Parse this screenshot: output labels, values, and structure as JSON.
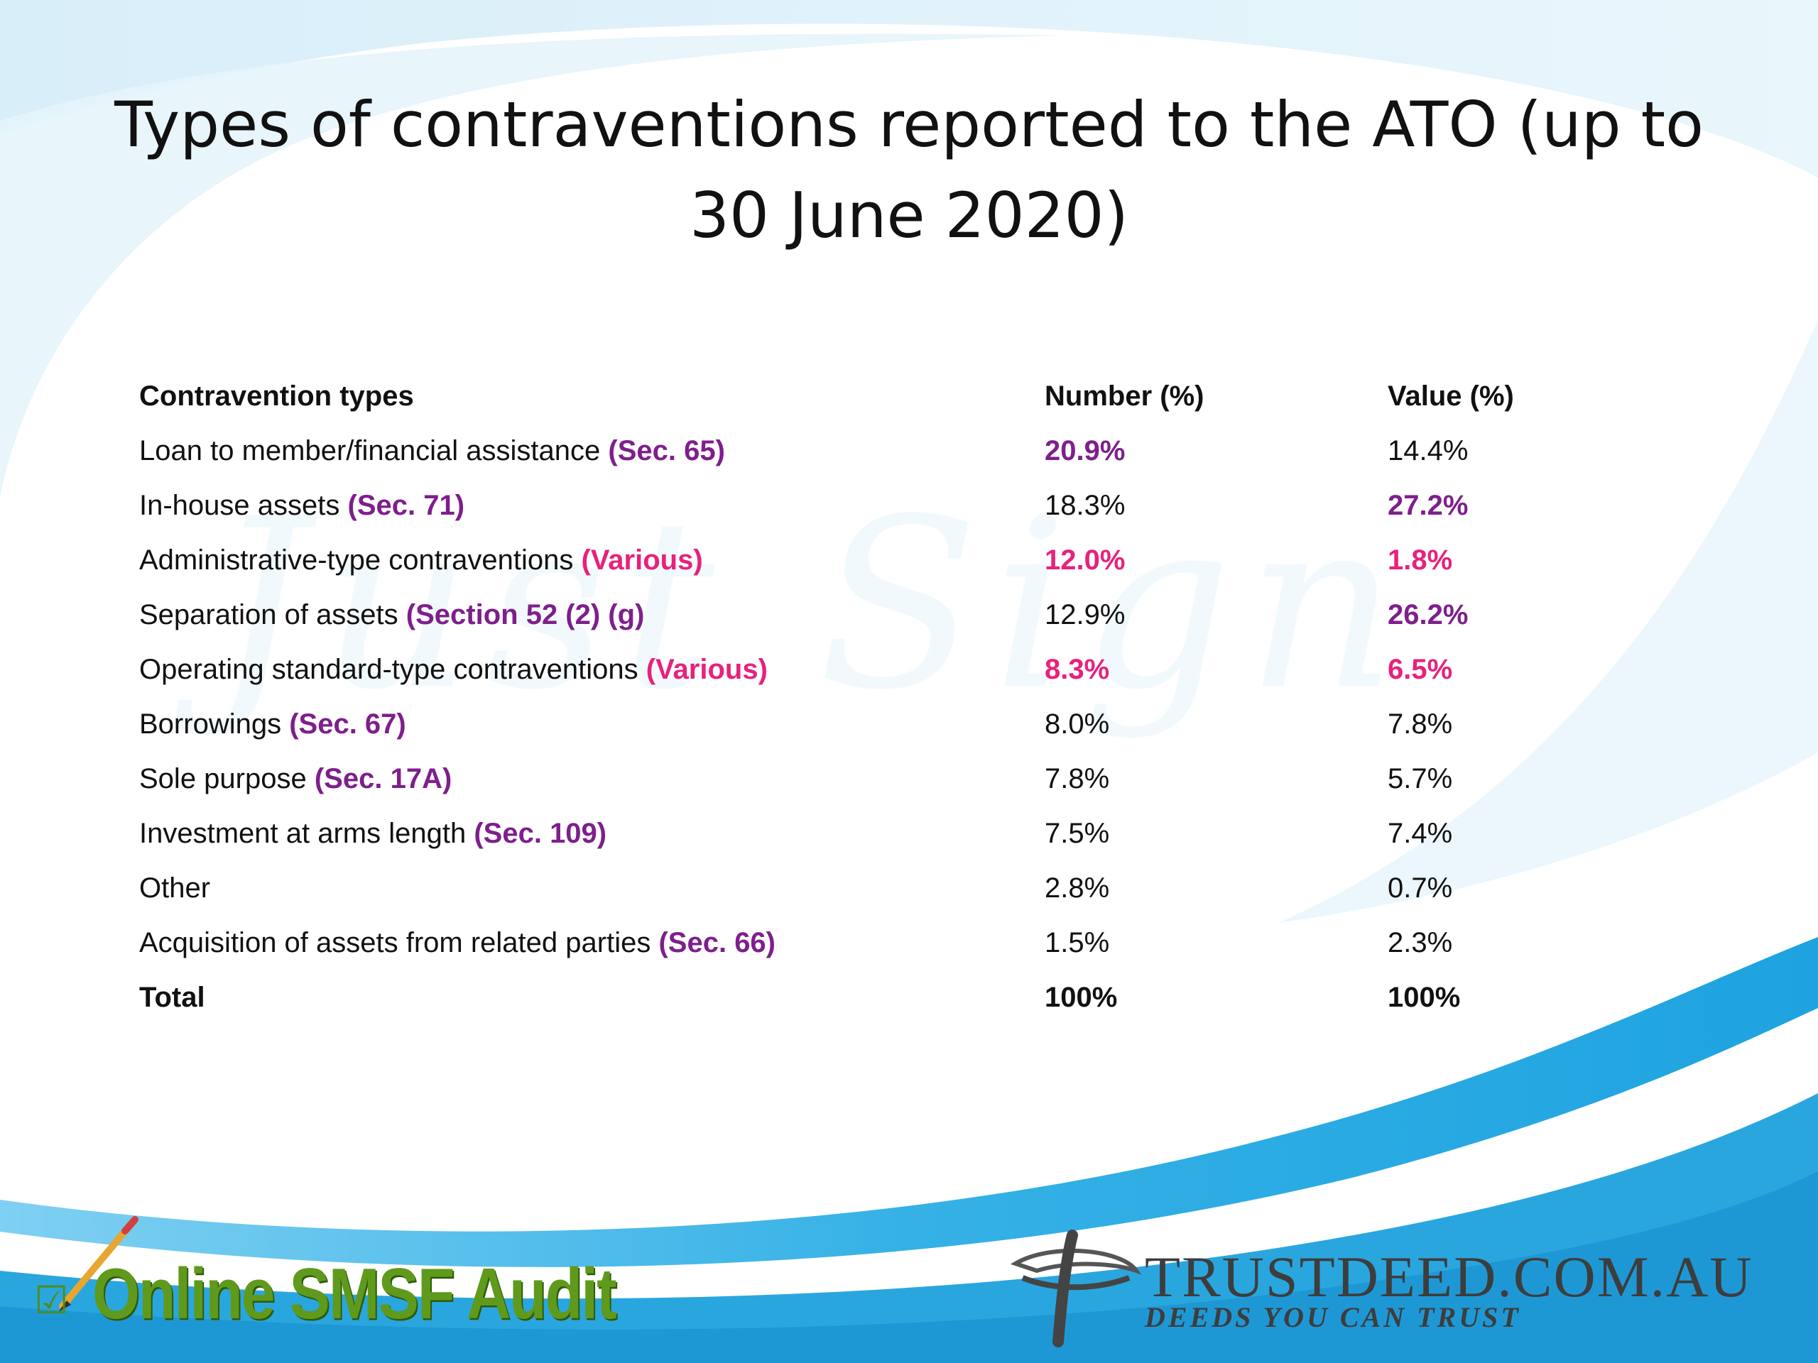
{
  "title": {
    "line1": "Types of contraventions reported to the ATO (up to",
    "line2": "30 June 2020)"
  },
  "table": {
    "headers": [
      "Contravention types",
      "Number (%)",
      "Value (%)"
    ],
    "rows": [
      {
        "label": "Loan to member/financial assistance",
        "ref": "(Sec. 65)",
        "ref_color": "purple",
        "number": "20.9%",
        "number_style": "purple",
        "value": "14.4%",
        "value_style": "plain"
      },
      {
        "label": "In-house assets",
        "ref": "(Sec. 71)",
        "ref_color": "purple",
        "number": "18.3%",
        "number_style": "plain",
        "value": "27.2%",
        "value_style": "purple"
      },
      {
        "label": "Administrative-type contraventions",
        "ref": "(Various)",
        "ref_color": "pink",
        "number": "12.0%",
        "number_style": "pink",
        "value": "1.8%",
        "value_style": "pink"
      },
      {
        "label": "Separation of assets",
        "ref": "(Section 52 (2) (g)",
        "ref_color": "purple",
        "number": "12.9%",
        "number_style": "plain",
        "value": "26.2%",
        "value_style": "purple"
      },
      {
        "label": "Operating standard-type contraventions",
        "ref": "(Various)",
        "ref_color": "pink",
        "number": "8.3%",
        "number_style": "pink",
        "value": "6.5%",
        "value_style": "pink"
      },
      {
        "label": "Borrowings",
        "ref": "(Sec. 67)",
        "ref_color": "purple",
        "number": "8.0%",
        "number_style": "plain",
        "value": "7.8%",
        "value_style": "plain"
      },
      {
        "label": "Sole purpose",
        "ref": "(Sec. 17A)",
        "ref_color": "purple",
        "number": "7.8%",
        "number_style": "plain",
        "value": "5.7%",
        "value_style": "plain"
      },
      {
        "label": "Investment at arms length",
        "ref": "(Sec. 109)",
        "ref_color": "purple",
        "number": "7.5%",
        "number_style": "plain",
        "value": "7.4%",
        "value_style": "plain"
      },
      {
        "label": "Other",
        "ref": "",
        "ref_color": "purple",
        "number": "2.8%",
        "number_style": "plain",
        "value": "0.7%",
        "value_style": "plain"
      },
      {
        "label": "Acquisition of assets from related parties",
        "ref": "(Sec. 66)",
        "ref_color": "purple",
        "number": "1.5%",
        "number_style": "plain",
        "value": "2.3%",
        "value_style": "plain"
      }
    ],
    "total": {
      "label": "Total",
      "number": "100%",
      "value": "100%"
    }
  },
  "watermark": "Just Sign",
  "footer": {
    "left_logo": "Online SMSF Audit",
    "right_logo": "TRUSTDEED.COM.AU",
    "right_tagline": "DEEDS YOU CAN TRUST"
  },
  "colors": {
    "purple": "#7e1f8c",
    "pink": "#e8217c",
    "blue": "#2aa6df",
    "light_blue": "#dff1fb",
    "green": "#5f9a1c"
  },
  "icons": [
    "pencil-icon",
    "checkbox-icon",
    "trustdeed-swoosh-icon"
  ]
}
